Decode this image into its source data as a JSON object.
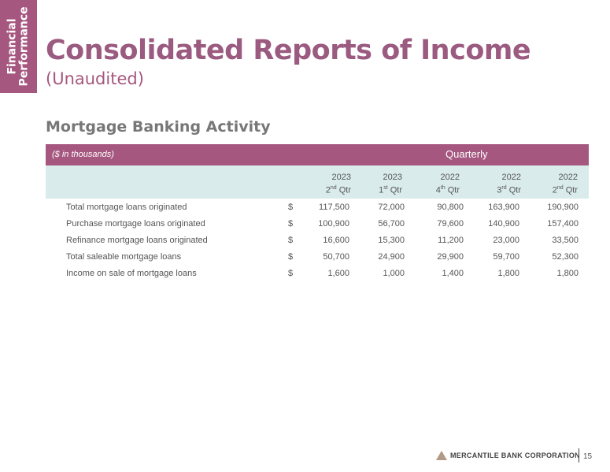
{
  "side_tab": {
    "line1": "Financial",
    "line2": "Performance"
  },
  "title": "Consolidated Reports of Income",
  "subtitle": "(Unaudited)",
  "section_title": "Mortgage Banking Activity",
  "table": {
    "units_label": "($ in thousands)",
    "group_header": "Quarterly",
    "columns": [
      {
        "year": "2023",
        "q": "2",
        "suffix": "nd",
        "qtr": "Qtr"
      },
      {
        "year": "2023",
        "q": "1",
        "suffix": "st",
        "qtr": "Qtr"
      },
      {
        "year": "2022",
        "q": "4",
        "suffix": "th",
        "qtr": "Qtr"
      },
      {
        "year": "2022",
        "q": "3",
        "suffix": "rd",
        "qtr": "Qtr"
      },
      {
        "year": "2022",
        "q": "2",
        "suffix": "nd",
        "qtr": "Qtr"
      }
    ],
    "rows": [
      {
        "label": "Total mortgage loans originated",
        "currency": "$",
        "values": [
          "117,500",
          "72,000",
          "90,800",
          "163,900",
          "190,900"
        ]
      },
      {
        "label": "Purchase mortgage loans originated",
        "currency": "$",
        "values": [
          "100,900",
          "56,700",
          "79,600",
          "140,900",
          "157,400"
        ]
      },
      {
        "label": "Refinance mortgage loans originated",
        "currency": "$",
        "values": [
          "16,600",
          "15,300",
          "11,200",
          "23,000",
          "33,500"
        ]
      },
      {
        "label": "Total saleable mortgage loans",
        "currency": "$",
        "values": [
          "50,700",
          "24,900",
          "29,900",
          "59,700",
          "52,300"
        ]
      },
      {
        "label": "Income on sale of mortgage loans",
        "currency": "$",
        "values": [
          "1,600",
          "1,000",
          "1,400",
          "1,800",
          "1,800"
        ]
      }
    ]
  },
  "footer": {
    "company": "MERCANTILE BANK CORPORATION",
    "page_number": "15"
  },
  "colors": {
    "accent": "#a5577f",
    "subheader_bg": "#d9ebeb",
    "logo_triangle": "#b09a86"
  }
}
